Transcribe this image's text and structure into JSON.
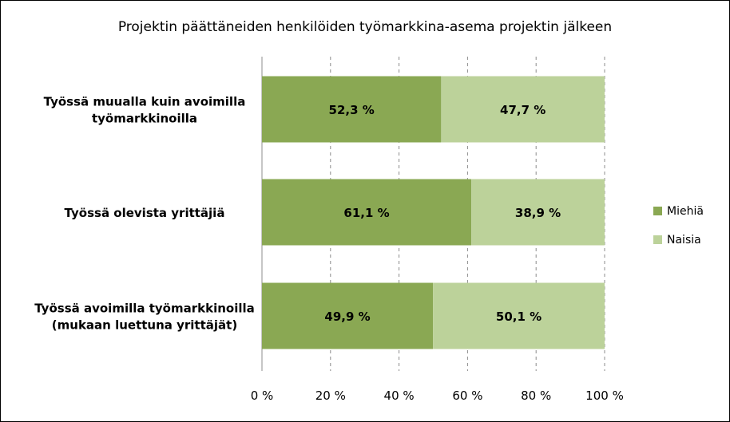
{
  "chart_data": {
    "type": "bar",
    "orientation": "horizontal",
    "stacked": "percent",
    "title": "Projektin päättäneiden henkilöiden työmarkkina-asema projektin jälkeen",
    "categories": [
      [
        "Työssä muualla kuin avoimilla",
        "työmarkkinoilla"
      ],
      [
        "Työssä olevista yrittäjiä"
      ],
      [
        "Työssä avoimilla työmarkkinoilla",
        "(mukaan luettuna yrittäjät)"
      ]
    ],
    "series": [
      {
        "name": "Miehiä",
        "values": [
          52.3,
          61.1,
          49.9
        ],
        "labels": [
          "52,3 %",
          "61,1 %",
          "49,9 %"
        ],
        "color": "#8aa853"
      },
      {
        "name": "Naisia",
        "values": [
          47.7,
          38.9,
          50.1
        ],
        "labels": [
          "47,7 %",
          "38,9 %",
          "50,1 %"
        ],
        "color": "#bcd29a"
      }
    ],
    "xlim": [
      0,
      100
    ],
    "x_ticks": [
      "0 %",
      "20 %",
      "40 %",
      "60 %",
      "80 %",
      "100 %"
    ],
    "grid": "vertical dashed",
    "legend_position": "right"
  }
}
